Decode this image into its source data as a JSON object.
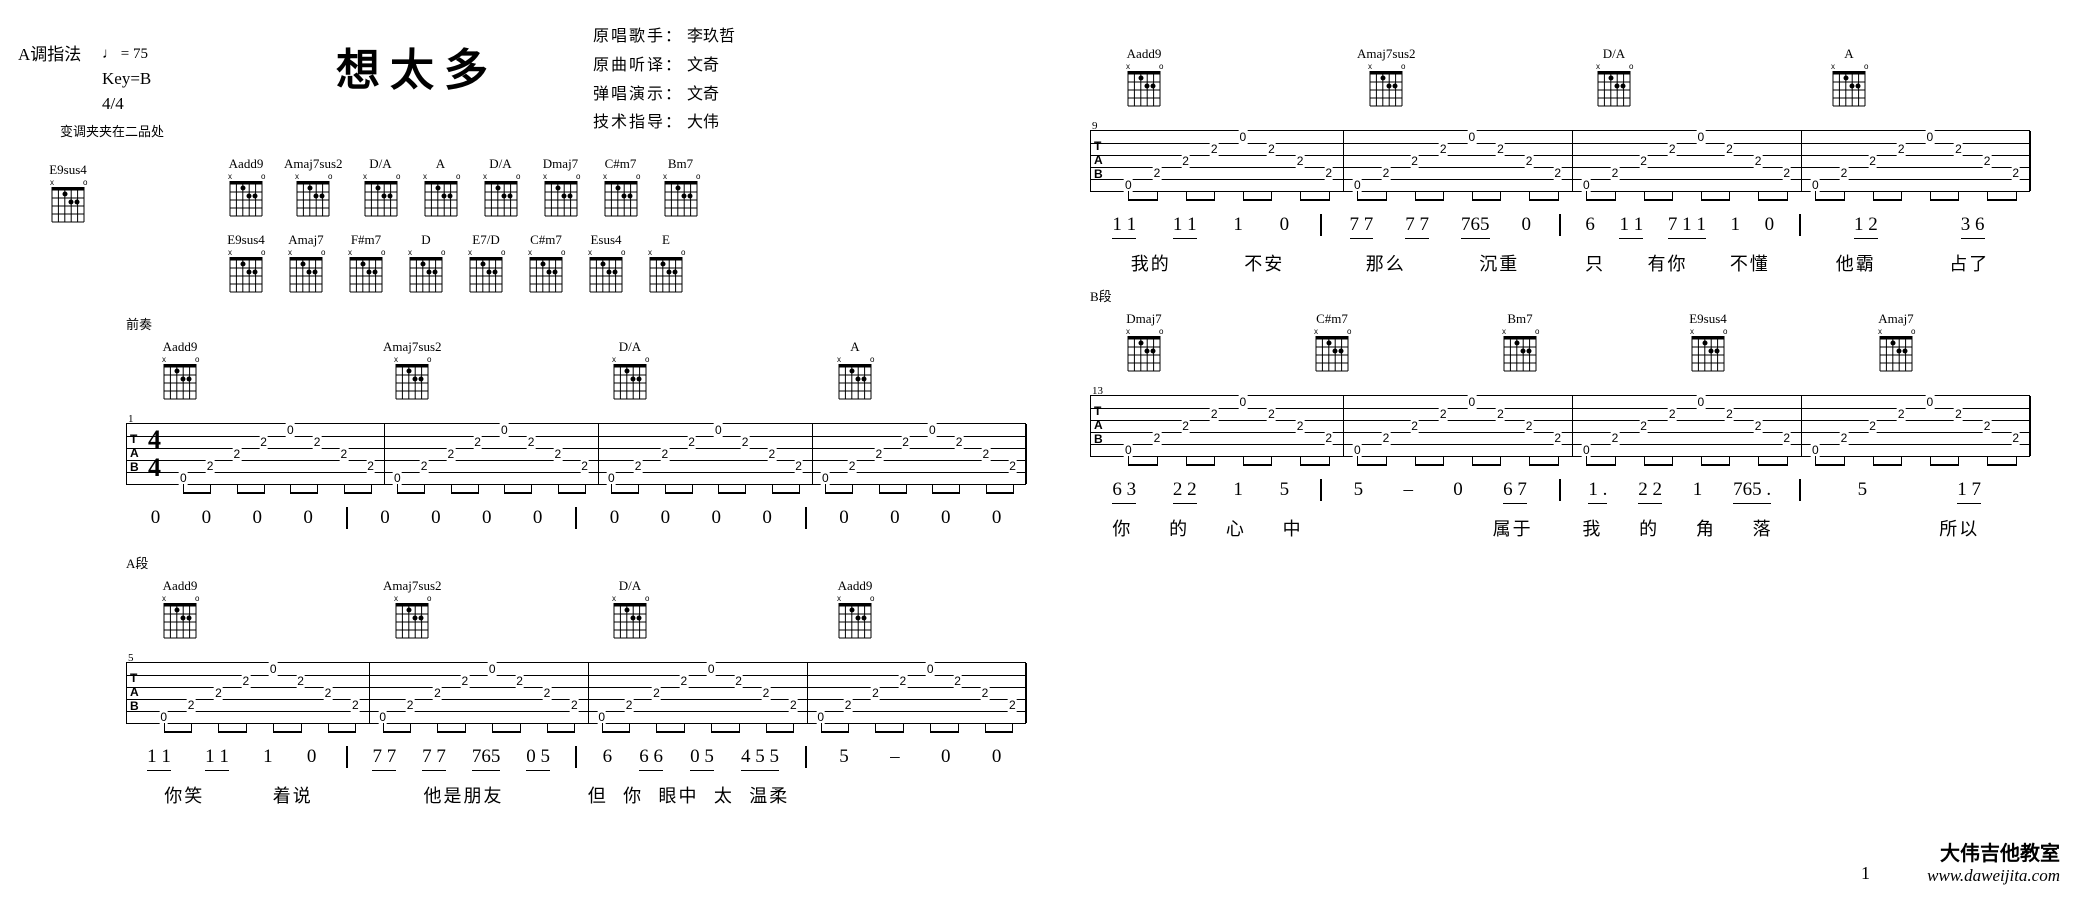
{
  "corner": "A调指法",
  "tempo": "♩ = 75",
  "key": "Key=B",
  "timesig": "4/4",
  "capo": "变调夹夹在二品处",
  "title": "想太多",
  "credits": [
    [
      "原唱歌手：",
      "李玖哲"
    ],
    [
      "原曲听译：",
      "文奇"
    ],
    [
      "弹唱演示：",
      "文奇"
    ],
    [
      "技术指导：",
      "大伟"
    ]
  ],
  "solo_chord": "E9sus4",
  "chord_bank_row1": [
    "Aadd9",
    "Amaj7sus2",
    "D/A",
    "A",
    "D/A",
    "Dmaj7",
    "C#m7",
    "Bm7"
  ],
  "chord_bank_row2": [
    "E9sus4",
    "Amaj7",
    "F#m7",
    "D",
    "E7/D",
    "C#m7",
    "Esus4",
    "E"
  ],
  "sectionA": "前奏",
  "sysL1": {
    "barnum": "1",
    "chords": [
      "Aadd9",
      "Amaj7sus2",
      "D/A",
      "A"
    ],
    "jianpu": [
      [
        "0",
        "0",
        "0",
        "0"
      ],
      [
        "0",
        "0",
        "0",
        "0"
      ],
      [
        "0",
        "0",
        "0",
        "0"
      ],
      [
        "0",
        "0",
        "0",
        "0"
      ]
    ],
    "lyrics": [
      [
        ""
      ],
      [
        ""
      ],
      [
        ""
      ],
      [
        ""
      ]
    ]
  },
  "sectionB": "A段",
  "sysL2": {
    "barnum": "5",
    "chords": [
      "Aadd9",
      "Amaj7sus2",
      "D/A",
      "Aadd9"
    ],
    "jianpu": [
      [
        "1 1",
        "1 1",
        "1",
        "0"
      ],
      [
        "7 7",
        "7 7",
        "765",
        "0 5"
      ],
      [
        "6",
        "6 6",
        "0 5",
        "4 5 5"
      ],
      [
        "5",
        "–",
        "0",
        "0"
      ]
    ],
    "lyrics": [
      [
        "你笑",
        "着说"
      ],
      [
        "他是朋友"
      ],
      [
        "但",
        "你",
        "眼中",
        "太",
        "温柔"
      ],
      [
        ""
      ]
    ]
  },
  "sysR1": {
    "barnum": "9",
    "chords": [
      "Aadd9",
      "Amaj7sus2",
      "D/A",
      "A"
    ],
    "jianpu": [
      [
        "1 1",
        "1 1",
        "1",
        "0"
      ],
      [
        "7 7",
        "7 7",
        "765",
        "0"
      ],
      [
        "6",
        "1 1",
        "7 1 1",
        "1",
        "0"
      ],
      [
        "1 2",
        "3 6"
      ]
    ],
    "lyrics": [
      [
        "我的",
        "不安"
      ],
      [
        "那么",
        "沉重"
      ],
      [
        "只",
        "有你",
        "不懂"
      ],
      [
        "他霸",
        "占了"
      ]
    ]
  },
  "sectionC": "B段",
  "sysR2": {
    "barnum": "13",
    "chords": [
      "Dmaj7",
      "C#m7",
      "Bm7",
      "E9sus4",
      "Amaj7"
    ],
    "jianpu": [
      [
        "6 3",
        "2 2",
        "1",
        "5"
      ],
      [
        "5",
        "–",
        "0",
        "6 7"
      ],
      [
        "1 .",
        "2 2",
        "1",
        "765 ."
      ],
      [
        "5",
        "1 7"
      ]
    ],
    "lyrics": [
      [
        "你",
        "的",
        "心",
        "中"
      ],
      [
        "",
        "",
        "",
        "属于"
      ],
      [
        "我",
        "的",
        "角",
        "落"
      ],
      [
        "",
        "所以"
      ]
    ]
  },
  "footer_a": "大伟吉他教室",
  "footer_b": "www.daweijita.com",
  "pagenum": "1"
}
